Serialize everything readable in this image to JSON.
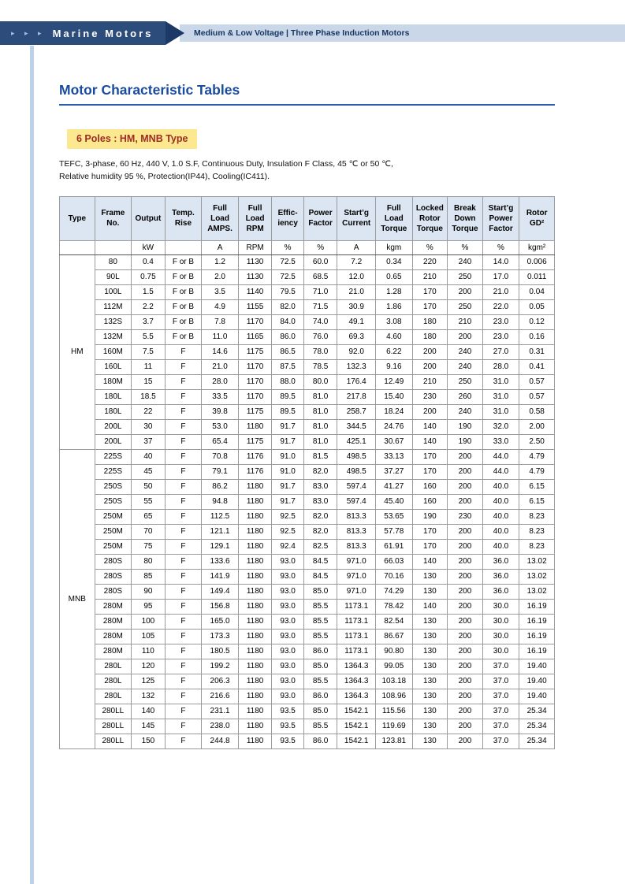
{
  "header": {
    "arrows": "▸ ▸ ▸",
    "brand": "Marine Motors",
    "breadcrumb": "Medium & Low Voltage  |  Three Phase Induction Motors"
  },
  "page": {
    "title": "Motor Characteristic Tables",
    "section_title": "6 Poles : HM, MNB Type",
    "description_line1": "TEFC, 3-phase, 60 Hz, 440 V, 1.0 S.F, Continuous Duty, Insulation F Class, 45 ℃ or 50 ℃,",
    "description_line2": "Relative humidity 95 %, Protection(IP44), Cooling(IC411)."
  },
  "colors": {
    "brand_bar": "#2c4c7c",
    "chevron": "#1d3a66",
    "sub_bar": "#c9d7e9",
    "title_blue": "#1a4c9e",
    "section_highlight": "#fbe88f",
    "section_text": "#9e2b25",
    "table_header_bg": "#dce5f2"
  },
  "table": {
    "headers": [
      "Type",
      "Frame\nNo.",
      "Output",
      "Temp.\nRise",
      "Full\nLoad\nAMPS.",
      "Full\nLoad\nRPM",
      "Effic-\niency",
      "Power\nFactor",
      "Start’g\nCurrent",
      "Full\nLoad\nTorque",
      "Locked\nRotor\nTorque",
      "Break\nDown\nTorque",
      "Start’g\nPower\nFactor",
      "Rotor\nGD²"
    ],
    "units": [
      "",
      "",
      "kW",
      "",
      "A",
      "RPM",
      "%",
      "%",
      "A",
      "kgm",
      "%",
      "%",
      "%",
      "kgm²"
    ],
    "groups": [
      {
        "type": "HM",
        "rows": [
          [
            "80",
            "0.4",
            "F or B",
            "1.2",
            "1130",
            "72.5",
            "60.0",
            "7.2",
            "0.34",
            "220",
            "240",
            "14.0",
            "0.006"
          ],
          [
            "90L",
            "0.75",
            "F or B",
            "2.0",
            "1130",
            "72.5",
            "68.5",
            "12.0",
            "0.65",
            "210",
            "250",
            "17.0",
            "0.011"
          ],
          [
            "100L",
            "1.5",
            "F or B",
            "3.5",
            "1140",
            "79.5",
            "71.0",
            "21.0",
            "1.28",
            "170",
            "200",
            "21.0",
            "0.04"
          ],
          [
            "112M",
            "2.2",
            "F or B",
            "4.9",
            "1155",
            "82.0",
            "71.5",
            "30.9",
            "1.86",
            "170",
            "250",
            "22.0",
            "0.05"
          ],
          [
            "132S",
            "3.7",
            "F or B",
            "7.8",
            "1170",
            "84.0",
            "74.0",
            "49.1",
            "3.08",
            "180",
            "210",
            "23.0",
            "0.12"
          ],
          [
            "132M",
            "5.5",
            "F or B",
            "11.0",
            "1165",
            "86.0",
            "76.0",
            "69.3",
            "4.60",
            "180",
            "200",
            "23.0",
            "0.16"
          ],
          [
            "160M",
            "7.5",
            "F",
            "14.6",
            "1175",
            "86.5",
            "78.0",
            "92.0",
            "6.22",
            "200",
            "240",
            "27.0",
            "0.31"
          ],
          [
            "160L",
            "11",
            "F",
            "21.0",
            "1170",
            "87.5",
            "78.5",
            "132.3",
            "9.16",
            "200",
            "240",
            "28.0",
            "0.41"
          ],
          [
            "180M",
            "15",
            "F",
            "28.0",
            "1170",
            "88.0",
            "80.0",
            "176.4",
            "12.49",
            "210",
            "250",
            "31.0",
            "0.57"
          ],
          [
            "180L",
            "18.5",
            "F",
            "33.5",
            "1170",
            "89.5",
            "81.0",
            "217.8",
            "15.40",
            "230",
            "260",
            "31.0",
            "0.57"
          ],
          [
            "180L",
            "22",
            "F",
            "39.8",
            "1175",
            "89.5",
            "81.0",
            "258.7",
            "18.24",
            "200",
            "240",
            "31.0",
            "0.58"
          ],
          [
            "200L",
            "30",
            "F",
            "53.0",
            "1180",
            "91.7",
            "81.0",
            "344.5",
            "24.76",
            "140",
            "190",
            "32.0",
            "2.00"
          ],
          [
            "200L",
            "37",
            "F",
            "65.4",
            "1175",
            "91.7",
            "81.0",
            "425.1",
            "30.67",
            "140",
            "190",
            "33.0",
            "2.50"
          ]
        ]
      },
      {
        "type": "MNB",
        "rows": [
          [
            "225S",
            "40",
            "F",
            "70.8",
            "1176",
            "91.0",
            "81.5",
            "498.5",
            "33.13",
            "170",
            "200",
            "44.0",
            "4.79"
          ],
          [
            "225S",
            "45",
            "F",
            "79.1",
            "1176",
            "91.0",
            "82.0",
            "498.5",
            "37.27",
            "170",
            "200",
            "44.0",
            "4.79"
          ],
          [
            "250S",
            "50",
            "F",
            "86.2",
            "1180",
            "91.7",
            "83.0",
            "597.4",
            "41.27",
            "160",
            "200",
            "40.0",
            "6.15"
          ],
          [
            "250S",
            "55",
            "F",
            "94.8",
            "1180",
            "91.7",
            "83.0",
            "597.4",
            "45.40",
            "160",
            "200",
            "40.0",
            "6.15"
          ],
          [
            "250M",
            "65",
            "F",
            "112.5",
            "1180",
            "92.5",
            "82.0",
            "813.3",
            "53.65",
            "190",
            "230",
            "40.0",
            "8.23"
          ],
          [
            "250M",
            "70",
            "F",
            "121.1",
            "1180",
            "92.5",
            "82.0",
            "813.3",
            "57.78",
            "170",
            "200",
            "40.0",
            "8.23"
          ],
          [
            "250M",
            "75",
            "F",
            "129.1",
            "1180",
            "92.4",
            "82.5",
            "813.3",
            "61.91",
            "170",
            "200",
            "40.0",
            "8.23"
          ],
          [
            "280S",
            "80",
            "F",
            "133.6",
            "1180",
            "93.0",
            "84.5",
            "971.0",
            "66.03",
            "140",
            "200",
            "36.0",
            "13.02"
          ],
          [
            "280S",
            "85",
            "F",
            "141.9",
            "1180",
            "93.0",
            "84.5",
            "971.0",
            "70.16",
            "130",
            "200",
            "36.0",
            "13.02"
          ],
          [
            "280S",
            "90",
            "F",
            "149.4",
            "1180",
            "93.0",
            "85.0",
            "971.0",
            "74.29",
            "130",
            "200",
            "36.0",
            "13.02"
          ],
          [
            "280M",
            "95",
            "F",
            "156.8",
            "1180",
            "93.0",
            "85.5",
            "1173.1",
            "78.42",
            "140",
            "200",
            "30.0",
            "16.19"
          ],
          [
            "280M",
            "100",
            "F",
            "165.0",
            "1180",
            "93.0",
            "85.5",
            "1173.1",
            "82.54",
            "130",
            "200",
            "30.0",
            "16.19"
          ],
          [
            "280M",
            "105",
            "F",
            "173.3",
            "1180",
            "93.0",
            "85.5",
            "1173.1",
            "86.67",
            "130",
            "200",
            "30.0",
            "16.19"
          ],
          [
            "280M",
            "110",
            "F",
            "180.5",
            "1180",
            "93.0",
            "86.0",
            "1173.1",
            "90.80",
            "130",
            "200",
            "30.0",
            "16.19"
          ],
          [
            "280L",
            "120",
            "F",
            "199.2",
            "1180",
            "93.0",
            "85.0",
            "1364.3",
            "99.05",
            "130",
            "200",
            "37.0",
            "19.40"
          ],
          [
            "280L",
            "125",
            "F",
            "206.3",
            "1180",
            "93.0",
            "85.5",
            "1364.3",
            "103.18",
            "130",
            "200",
            "37.0",
            "19.40"
          ],
          [
            "280L",
            "132",
            "F",
            "216.6",
            "1180",
            "93.0",
            "86.0",
            "1364.3",
            "108.96",
            "130",
            "200",
            "37.0",
            "19.40"
          ],
          [
            "280LL",
            "140",
            "F",
            "231.1",
            "1180",
            "93.5",
            "85.0",
            "1542.1",
            "115.56",
            "130",
            "200",
            "37.0",
            "25.34"
          ],
          [
            "280LL",
            "145",
            "F",
            "238.0",
            "1180",
            "93.5",
            "85.5",
            "1542.1",
            "119.69",
            "130",
            "200",
            "37.0",
            "25.34"
          ],
          [
            "280LL",
            "150",
            "F",
            "244.8",
            "1180",
            "93.5",
            "86.0",
            "1542.1",
            "123.81",
            "130",
            "200",
            "37.0",
            "25.34"
          ]
        ]
      }
    ]
  }
}
